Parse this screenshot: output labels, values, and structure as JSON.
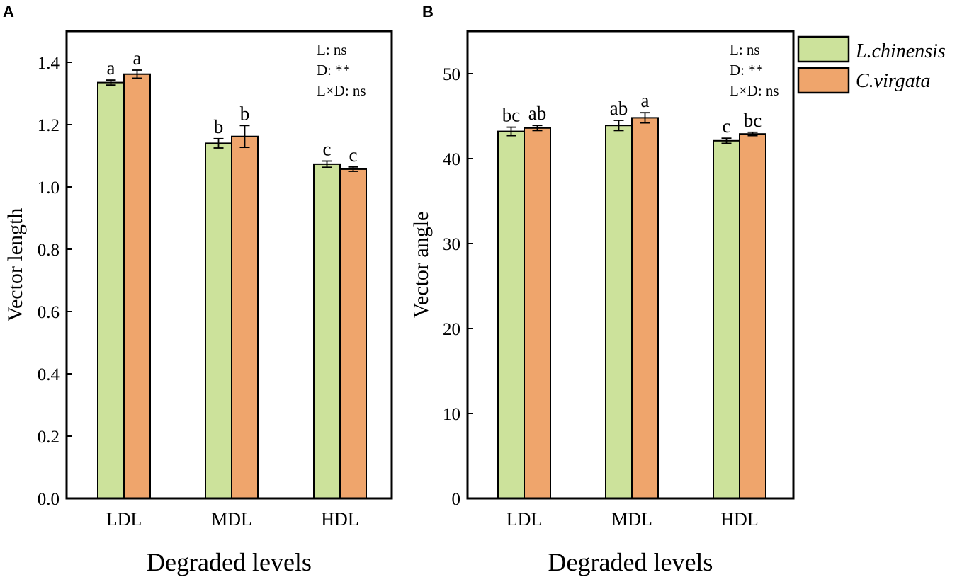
{
  "chart_data": [
    {
      "type": "bar",
      "panel_label": "A",
      "xlabel": "Degraded levels",
      "ylabel": "Vector length",
      "categories": [
        "LDL",
        "MDL",
        "HDL"
      ],
      "ylim": [
        0,
        1.5
      ],
      "yticks": [
        0.0,
        0.2,
        0.4,
        0.6,
        0.8,
        1.0,
        1.2,
        1.4
      ],
      "ytick_labels": [
        "0.0",
        "0.2",
        "0.4",
        "0.6",
        "0.8",
        "1.0",
        "1.2",
        "1.4"
      ],
      "series": [
        {
          "name": "L.chinensis",
          "color": "#cce29b",
          "values": [
            1.335,
            1.14,
            1.073
          ],
          "errors": [
            0.008,
            0.015,
            0.01
          ],
          "letters": [
            "a",
            "b",
            "c"
          ]
        },
        {
          "name": "C.virgata",
          "color": "#efa56c",
          "values": [
            1.362,
            1.162,
            1.057
          ],
          "errors": [
            0.013,
            0.035,
            0.007
          ],
          "letters": [
            "a",
            "b",
            "c"
          ]
        }
      ],
      "stats": [
        "L: ns",
        "D: **",
        "L×D: ns"
      ]
    },
    {
      "type": "bar",
      "panel_label": "B",
      "xlabel": "Degraded levels",
      "ylabel": "Vector angle",
      "categories": [
        "LDL",
        "MDL",
        "HDL"
      ],
      "ylim": [
        0,
        55
      ],
      "yticks": [
        0,
        10,
        20,
        30,
        40,
        50
      ],
      "ytick_labels": [
        "0",
        "10",
        "20",
        "30",
        "40",
        "50"
      ],
      "series": [
        {
          "name": "L.chinensis",
          "color": "#cce29b",
          "values": [
            43.2,
            43.9,
            42.1
          ],
          "errors": [
            0.5,
            0.6,
            0.3
          ],
          "letters": [
            "bc",
            "ab",
            "c"
          ]
        },
        {
          "name": "C.virgata",
          "color": "#efa56c",
          "values": [
            43.6,
            44.8,
            42.9
          ],
          "errors": [
            0.3,
            0.6,
            0.2
          ],
          "letters": [
            "ab",
            "a",
            "bc"
          ]
        }
      ],
      "stats": [
        "L: ns",
        "D: **",
        "L×D: ns"
      ]
    }
  ],
  "legend": {
    "placement": "top-right",
    "items": [
      {
        "label": "L.chinensis",
        "color": "#cce29b"
      },
      {
        "label": "C.virgata",
        "color": "#efa56c"
      }
    ]
  }
}
